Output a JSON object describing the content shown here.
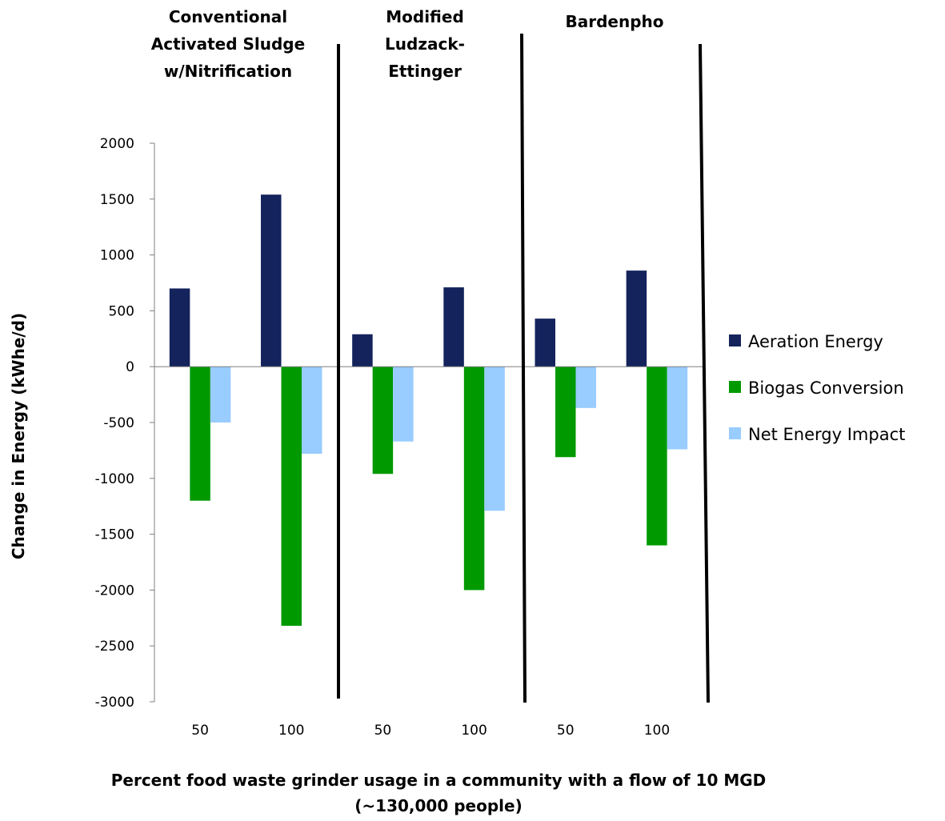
{
  "chart_data": {
    "type": "bar",
    "xlabel_lines": [
      "Percent food waste grinder usage in a community with a flow of 10 MGD",
      "(~130,000 people)"
    ],
    "ylabel": "Change in Energy (kWhe/d)",
    "ylim": [
      -3000,
      2000
    ],
    "yticks": [
      2000,
      1500,
      1000,
      500,
      0,
      -500,
      -1000,
      -1500,
      -2000,
      -2500,
      -3000
    ],
    "categories": [
      "50",
      "100",
      "50",
      "100",
      "50",
      "100"
    ],
    "groups": [
      {
        "title_lines": [
          "Conventional",
          "Activated Sludge",
          "w/Nitrification"
        ],
        "categories": [
          "50",
          "100"
        ]
      },
      {
        "title_lines": [
          "Modified",
          "Ludzack-",
          "Ettinger"
        ],
        "categories": [
          "50",
          "100"
        ]
      },
      {
        "title_lines": [
          "Bardenpho"
        ],
        "categories": [
          "50",
          "100"
        ]
      }
    ],
    "series": [
      {
        "name": "Aeration Energy",
        "color": "#14235c",
        "values": [
          700,
          1540,
          290,
          710,
          430,
          860
        ]
      },
      {
        "name": "Biogas Conversion",
        "color": "#009900",
        "values": [
          -1200,
          -2320,
          -960,
          -2000,
          -810,
          -1600
        ]
      },
      {
        "name": "Net Energy Impact",
        "color": "#99ccff",
        "values": [
          -500,
          -780,
          -670,
          -1290,
          -370,
          -740
        ]
      }
    ],
    "grid": false,
    "legend_position": "right"
  }
}
